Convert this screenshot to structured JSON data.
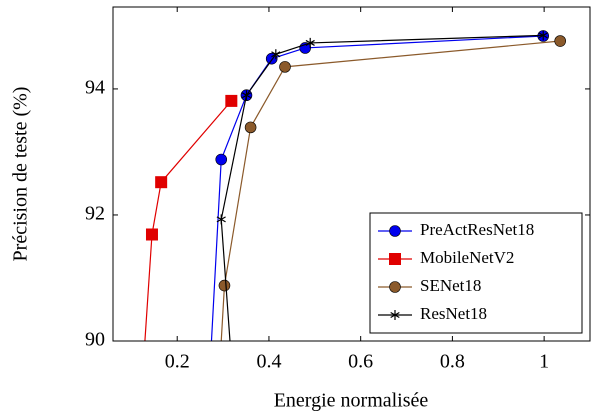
{
  "chart_data": {
    "type": "line",
    "x_label": "Energie normalisée",
    "y_label": "Précision de teste (%)",
    "xlim": [
      0.06,
      1.1
    ],
    "ylim": [
      90,
      95.3
    ],
    "xticks": [
      0.2,
      0.4,
      0.6,
      0.8,
      1
    ],
    "yticks": [
      90,
      92,
      94
    ],
    "legend": "lower right",
    "series": [
      {
        "name": "PreActResNet18",
        "color": "#0000ee",
        "marker": "circle",
        "x": [
          0.271,
          0.296,
          0.351,
          0.406,
          0.479,
          0.998
        ],
        "values": [
          89.5,
          92.88,
          93.9,
          94.48,
          94.65,
          94.84
        ]
      },
      {
        "name": "MobileNetV2",
        "color": "#e00000",
        "marker": "square",
        "x": [
          0.125,
          0.145,
          0.165,
          0.318
        ],
        "values": [
          89.5,
          91.69,
          92.52,
          93.81
        ]
      },
      {
        "name": "SENet18",
        "color": "#8b5a2b",
        "marker": "circle",
        "x": [
          0.292,
          0.303,
          0.36,
          0.435,
          1.035
        ],
        "values": [
          89.5,
          90.88,
          93.39,
          94.35,
          94.76
        ]
      },
      {
        "name": "ResNet18",
        "color": "#000000",
        "marker": "star",
        "x": [
          0.32,
          0.296,
          0.351,
          0.415,
          0.49,
          0.998
        ],
        "values": [
          89.5,
          91.93,
          93.9,
          94.55,
          94.73,
          94.85
        ]
      }
    ]
  }
}
